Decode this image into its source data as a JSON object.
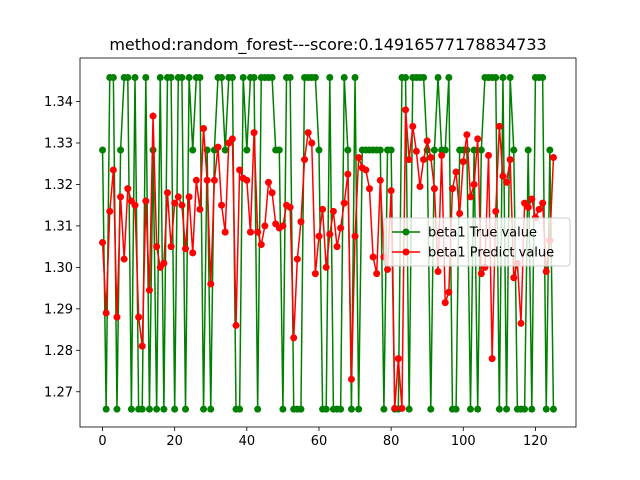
{
  "chart_data": {
    "type": "line",
    "title": "method:random_forest---score:0.14916577178834733",
    "xlabel": "",
    "ylabel": "",
    "xlim": [
      -6.25,
      131.25
    ],
    "ylim": [
      1.2615,
      1.3505
    ],
    "x_ticks": [
      0,
      20,
      40,
      60,
      80,
      100,
      120
    ],
    "y_ticks": [
      1.27,
      1.28,
      1.29,
      1.3,
      1.31,
      1.32,
      1.33,
      1.34
    ],
    "grid": false,
    "legend_position": "center-right",
    "series": [
      {
        "name": "beta1 True value",
        "color": "#008000",
        "marker": "circle",
        "values": [
          1.3283,
          1.2658,
          1.3458,
          1.3458,
          1.2658,
          1.3283,
          1.3458,
          1.3458,
          1.2658,
          1.3458,
          1.2658,
          1.2658,
          1.3458,
          1.2658,
          1.3283,
          1.2658,
          1.3458,
          1.2658,
          1.3458,
          1.3458,
          1.2658,
          1.3458,
          1.3458,
          1.2658,
          1.3458,
          1.3283,
          1.3458,
          1.3458,
          1.2658,
          1.3283,
          1.2658,
          1.3283,
          1.3458,
          1.3458,
          1.3283,
          1.3458,
          1.3458,
          1.2658,
          1.2658,
          1.3458,
          1.3283,
          1.3458,
          1.3458,
          1.2658,
          1.3458,
          1.3458,
          1.3458,
          1.3458,
          1.3283,
          1.3283,
          1.2658,
          1.3458,
          1.3458,
          1.2658,
          1.2658,
          1.2658,
          1.3458,
          1.3458,
          1.3458,
          1.3458,
          1.3283,
          1.2658,
          1.2658,
          1.3458,
          1.2658,
          1.2658,
          1.2658,
          1.3458,
          1.3283,
          1.2658,
          1.3458,
          1.2658,
          1.3283,
          1.3283,
          1.3283,
          1.3283,
          1.3283,
          1.3283,
          1.2658,
          1.3283,
          1.3283,
          1.2658,
          1.2658,
          1.3458,
          1.3458,
          1.2658,
          1.3458,
          1.3458,
          1.3458,
          1.3458,
          1.3283,
          1.2658,
          1.3283,
          1.3458,
          1.3283,
          1.3283,
          1.3458,
          1.2658,
          1.2658,
          1.3283,
          1.3283,
          1.3283,
          1.2658,
          1.3283,
          1.2658,
          1.3283,
          1.3458,
          1.3458,
          1.3458,
          1.3458,
          1.2658,
          1.3458,
          1.2658,
          1.3458,
          1.3283,
          1.2658,
          1.2658,
          1.2658,
          1.3283,
          1.2658,
          1.3458,
          1.3458,
          1.3458,
          1.2658,
          1.3283,
          1.2658
        ]
      },
      {
        "name": "beta1 Predict value",
        "color": "#ff0000",
        "marker": "circle",
        "values": [
          1.306,
          1.289,
          1.3135,
          1.3235,
          1.288,
          1.317,
          1.302,
          1.319,
          1.316,
          1.315,
          1.288,
          1.281,
          1.316,
          1.2945,
          1.3365,
          1.305,
          1.3,
          1.301,
          1.318,
          1.305,
          1.3155,
          1.317,
          1.315,
          1.3045,
          1.317,
          1.3035,
          1.321,
          1.314,
          1.3335,
          1.321,
          1.296,
          1.321,
          1.329,
          1.315,
          1.3085,
          1.33,
          1.331,
          1.286,
          1.3235,
          1.3215,
          1.321,
          1.3085,
          1.3325,
          1.3085,
          1.3055,
          1.31,
          1.3205,
          1.318,
          1.3105,
          1.3095,
          1.31,
          1.315,
          1.3145,
          1.283,
          1.302,
          1.311,
          1.326,
          1.3325,
          1.33,
          1.2985,
          1.3075,
          1.314,
          1.3,
          1.308,
          1.3135,
          1.305,
          1.3095,
          1.3155,
          1.3225,
          1.273,
          1.3075,
          1.3265,
          1.324,
          1.3235,
          1.319,
          1.3025,
          1.2985,
          1.321,
          1.3025,
          1.2995,
          1.3185,
          1.266,
          1.278,
          1.266,
          1.338,
          1.326,
          1.334,
          1.328,
          1.3195,
          1.326,
          1.3305,
          1.3265,
          1.319,
          1.299,
          1.327,
          1.2915,
          1.294,
          1.319,
          1.323,
          1.313,
          1.3255,
          1.332,
          1.317,
          1.32,
          1.331,
          1.2985,
          1.3,
          1.327,
          1.278,
          1.3135,
          1.334,
          1.322,
          1.3205,
          1.326,
          1.2975,
          1.301,
          1.2865,
          1.3155,
          1.3145,
          1.3165,
          1.312,
          1.314,
          1.3155,
          1.299,
          1.3065,
          1.3265
        ]
      }
    ]
  }
}
